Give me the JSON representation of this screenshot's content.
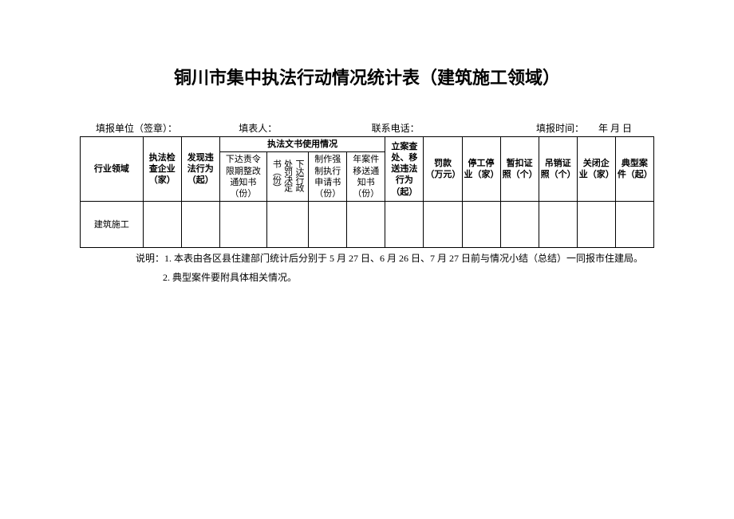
{
  "title": "铜川市集中执法行动情况统计表（建筑施工领域）",
  "info": {
    "unit_label": "填报单位（签章）：",
    "filler_label": "填表人：",
    "phone_label": "联系电话：",
    "time_label": "填报时间：　　年 月 日"
  },
  "table": {
    "header_industry": "行业领域",
    "header_check": "执法检查企业（家）",
    "header_found": "发现违法行为（起）",
    "header_docs": "执法文书使用情况",
    "header_order": "下达责令限期整改通知书（份）",
    "header_penalty_doc": "下达行政处罚决定书（份）",
    "header_enforce": "制作强制执行申请书（份）",
    "header_transfer": "年案件移送通知书（份）",
    "header_filing": "立案查处、移送违法行为（起）",
    "header_fine": "罚款（万元）",
    "header_stop": "停工停业（家）",
    "header_suspend": "暂扣证照（个）",
    "header_revoke": "吊销证照（个）",
    "header_close": "关闭企业（家）",
    "header_case": "典型案件（起）",
    "row_label": "建筑施工"
  },
  "notes": {
    "line1": "说明：1. 本表由各区县住建部门统计后分别于 5 月 27 日、6 月 26 日、7 月 27 日前与情况小结（总结）一同报市住建局。",
    "line2": "2. 典型案件要附具体相关情况。"
  }
}
